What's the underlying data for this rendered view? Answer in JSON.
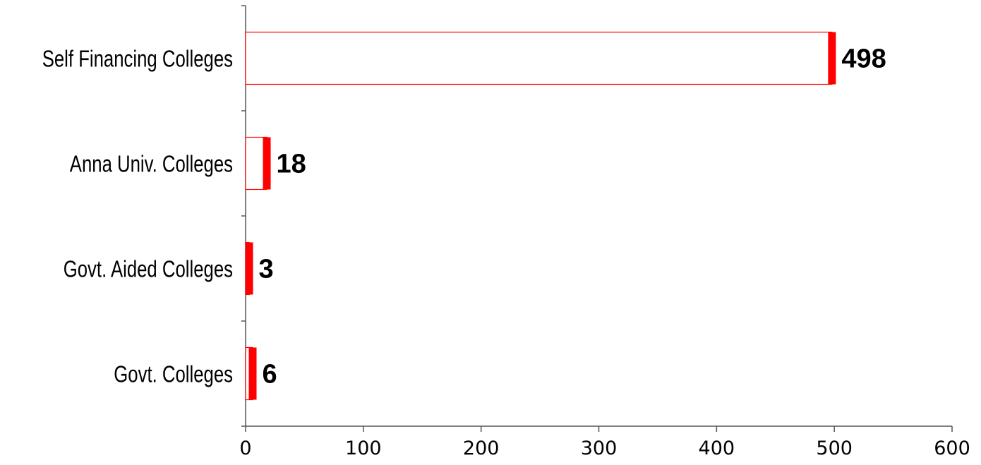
{
  "chart_data": {
    "type": "bar",
    "orientation": "horizontal",
    "categories": [
      "Self Financing Colleges",
      "Anna Univ. Colleges",
      "Govt. Aided Colleges",
      "Govt. Colleges"
    ],
    "values": [
      498,
      18,
      3,
      6
    ],
    "data_labels": [
      "498",
      "18",
      "3",
      "6"
    ],
    "xlim": [
      0,
      600
    ],
    "xticks": [
      0,
      100,
      200,
      300,
      400,
      500,
      600
    ],
    "title": "",
    "xlabel": "",
    "ylabel": "",
    "grid": false,
    "legend": "none",
    "colors": {
      "bar_outline": "#ff0000",
      "bar_cap": "#ff0000",
      "axis": "#555555",
      "text": "#000000"
    }
  }
}
